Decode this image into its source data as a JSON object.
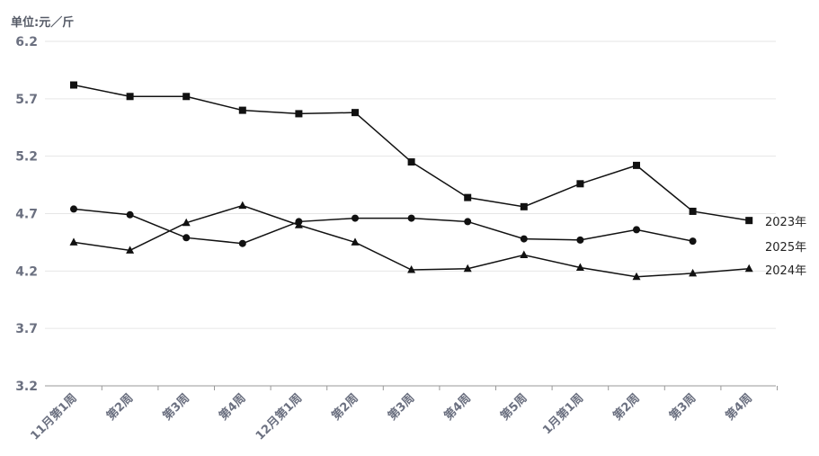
{
  "unit_label": "单位:元／斤",
  "chart_data": {
    "type": "line",
    "categories": [
      "11月第1周",
      "第2周",
      "第3周",
      "第4周",
      "12月第1周",
      "第2周",
      "第3周",
      "第4周",
      "第5周",
      "1月第1周",
      "第2周",
      "第3周",
      "第4周"
    ],
    "ylim": [
      3.2,
      6.2
    ],
    "yticks": [
      3.2,
      3.7,
      4.2,
      4.7,
      5.2,
      5.7,
      6.2
    ],
    "grid": true,
    "legend": "end-of-line labels",
    "series": [
      {
        "name": "2023年",
        "marker": "square",
        "color": "#111111",
        "values": [
          5.82,
          5.72,
          5.72,
          5.6,
          5.57,
          5.58,
          5.15,
          4.84,
          4.76,
          4.96,
          5.12,
          4.72,
          4.64
        ]
      },
      {
        "name": "2025年",
        "marker": "circle",
        "color": "#111111",
        "values": [
          4.74,
          4.69,
          4.49,
          4.44,
          4.63,
          4.66,
          4.66,
          4.63,
          4.48,
          4.47,
          4.56,
          4.46,
          null
        ]
      },
      {
        "name": "2024年",
        "marker": "triangle",
        "color": "#111111",
        "values": [
          4.45,
          4.38,
          4.62,
          4.77,
          4.6,
          4.45,
          4.21,
          4.22,
          4.34,
          4.23,
          4.15,
          4.18,
          4.22
        ]
      }
    ]
  }
}
